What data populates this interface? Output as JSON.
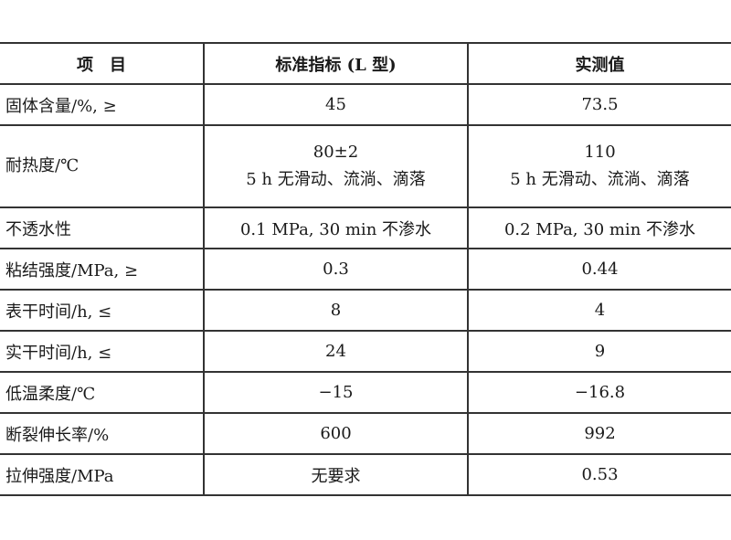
{
  "headers": [
    "项　目",
    "标准指标 (L 型)",
    "实测值"
  ],
  "rows": [
    {
      "item": "固体含量/%, ≥",
      "standard": [
        "45"
      ],
      "measured": [
        "73.5"
      ]
    },
    {
      "item": "耐热度/℃",
      "standard": [
        "80±2",
        "5 h 无滑动、流淌、滴落"
      ],
      "measured": [
        "110",
        "5 h 无滑动、流淌、滴落"
      ]
    },
    {
      "item": "不透水性",
      "standard": [
        "0.1 MPa, 30 min 不渗水"
      ],
      "measured": [
        "0.2 MPa, 30 min 不渗水"
      ]
    },
    {
      "item": "粘结强度/MPa, ≥",
      "standard": [
        "0.3"
      ],
      "measured": [
        "0.44"
      ]
    },
    {
      "item": "表干时间/h, ≤",
      "standard": [
        "8"
      ],
      "measured": [
        "4"
      ]
    },
    {
      "item": "实干时间/h, ≤",
      "standard": [
        "24"
      ],
      "measured": [
        "9"
      ]
    },
    {
      "item": "低温柔度/℃",
      "standard": [
        "−15"
      ],
      "measured": [
        "−16.8"
      ]
    },
    {
      "item": "断裂伸长率/%",
      "standard": [
        "600"
      ],
      "measured": [
        "992"
      ]
    },
    {
      "item": "拉伸强度/MPa",
      "standard": [
        "无要求"
      ],
      "measured": [
        "0.53"
      ]
    }
  ]
}
